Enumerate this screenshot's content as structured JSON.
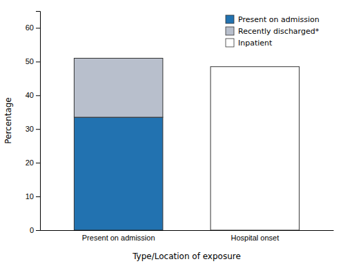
{
  "chart_data": {
    "type": "bar",
    "stacked": true,
    "categories": [
      "Present on admission",
      "Hospital onset"
    ],
    "series": [
      {
        "name": "Present on admission",
        "color": "#2272b0",
        "values": [
          33.5,
          null
        ]
      },
      {
        "name": "Recently discharged*",
        "color": "#b8bfcc",
        "values": [
          17.5,
          null
        ]
      },
      {
        "name": "Inpatient",
        "color": "#ffffff",
        "values": [
          null,
          48.5
        ]
      }
    ],
    "xlabel": "Type/Location of exposure",
    "ylabel": "Percentage",
    "ylim": [
      0,
      65
    ],
    "yticks": [
      0,
      10,
      20,
      30,
      40,
      50,
      60
    ],
    "grid": false,
    "legend": "upper right"
  }
}
